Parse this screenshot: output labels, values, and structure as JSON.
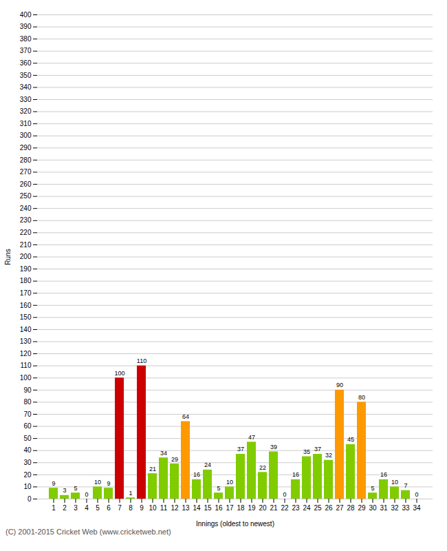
{
  "chart_data": {
    "type": "bar",
    "categories": [
      "1",
      "2",
      "3",
      "4",
      "5",
      "6",
      "7",
      "8",
      "9",
      "10",
      "11",
      "12",
      "13",
      "14",
      "15",
      "16",
      "17",
      "18",
      "19",
      "20",
      "21",
      "22",
      "23",
      "24",
      "25",
      "26",
      "27",
      "28",
      "29",
      "30",
      "31",
      "32",
      "33",
      "34"
    ],
    "values": [
      9,
      3,
      5,
      0,
      10,
      9,
      100,
      1,
      110,
      21,
      34,
      29,
      64,
      16,
      24,
      5,
      10,
      37,
      47,
      22,
      39,
      0,
      16,
      35,
      37,
      32,
      90,
      45,
      80,
      5,
      16,
      10,
      7,
      0
    ],
    "colors": [
      "#80cc00",
      "#80cc00",
      "#80cc00",
      "#80cc00",
      "#80cc00",
      "#80cc00",
      "#cc0000",
      "#80cc00",
      "#cc0000",
      "#80cc00",
      "#80cc00",
      "#80cc00",
      "#ff9900",
      "#80cc00",
      "#80cc00",
      "#80cc00",
      "#80cc00",
      "#80cc00",
      "#80cc00",
      "#80cc00",
      "#80cc00",
      "#80cc00",
      "#80cc00",
      "#80cc00",
      "#80cc00",
      "#80cc00",
      "#ff9900",
      "#80cc00",
      "#ff9900",
      "#80cc00",
      "#80cc00",
      "#80cc00",
      "#80cc00",
      "#80cc00"
    ],
    "xlabel": "Innings (oldest to newest)",
    "ylabel": "Runs",
    "ylim": [
      0,
      400
    ],
    "yticks": [
      0,
      10,
      20,
      30,
      40,
      50,
      60,
      70,
      80,
      90,
      100,
      110,
      120,
      130,
      140,
      150,
      160,
      170,
      180,
      190,
      200,
      210,
      220,
      230,
      240,
      250,
      260,
      270,
      280,
      290,
      300,
      310,
      320,
      330,
      340,
      350,
      360,
      370,
      380,
      390,
      400
    ],
    "grid": true,
    "data_labels": true,
    "annotations": [
      "(C) 2001-2015 Cricket Web (www.cricketweb.net)"
    ]
  }
}
